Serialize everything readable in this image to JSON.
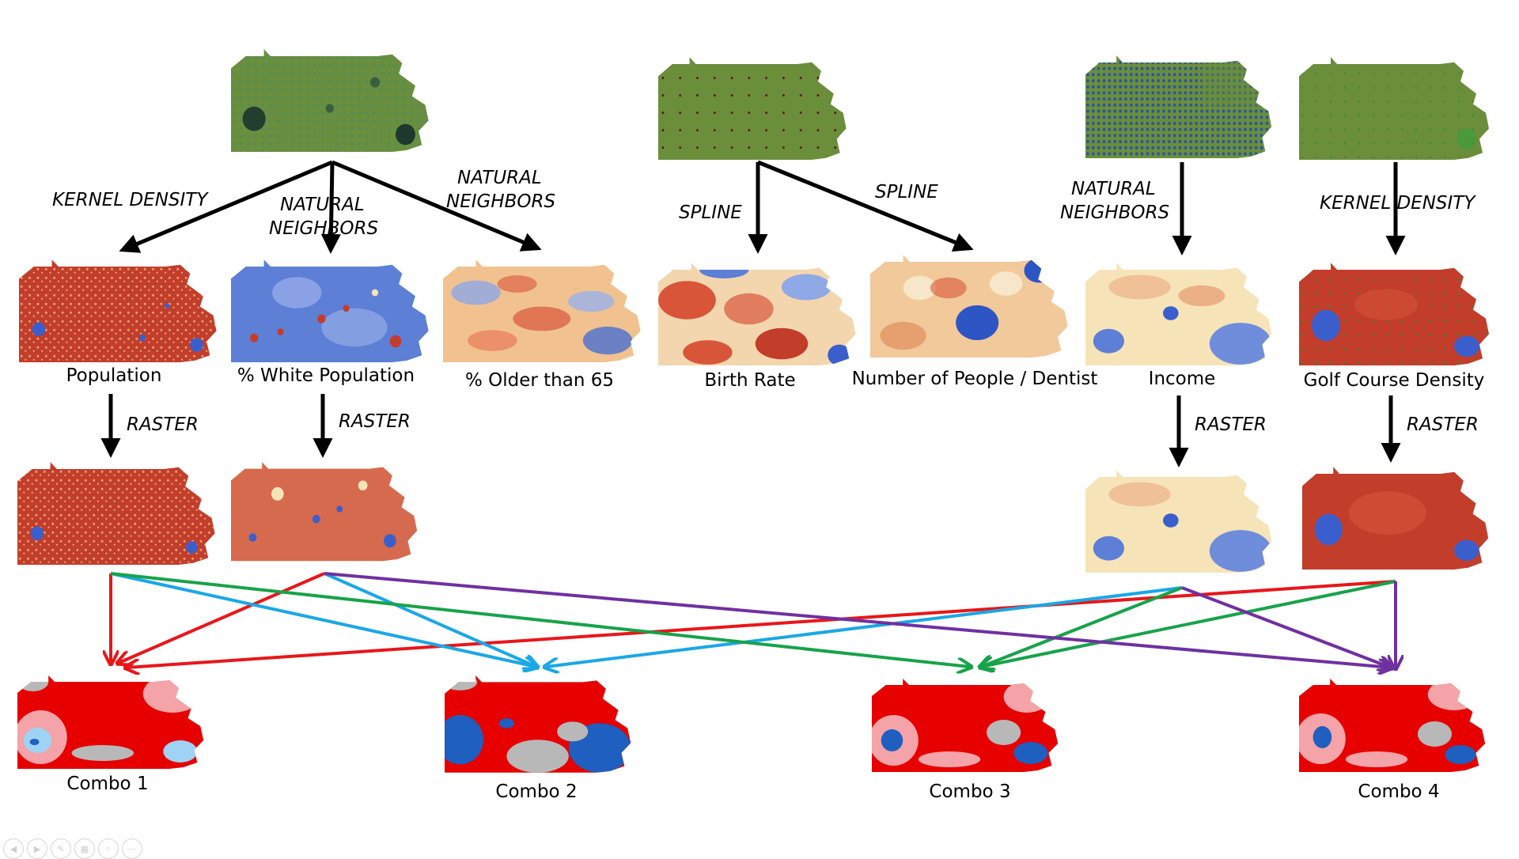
{
  "labels": {
    "population": "Population",
    "white_population": "% White Population",
    "older_than_65": "% Older than 65",
    "birth_rate": "Birth Rate",
    "people_per_dentist": "Number of People / Dentist",
    "income": "Income",
    "golf_course_density": "Golf Course Density",
    "combo1": "Combo 1",
    "combo2": "Combo 2",
    "combo3": "Combo 3",
    "combo4": "Combo 4"
  },
  "methods": {
    "kernel_density": "KERNEL DENSITY",
    "natural_neighbors": [
      "NATURAL",
      "NEIGHBORS"
    ],
    "spline": "SPLINE",
    "raster": "RASTER"
  },
  "colors": {
    "map_green": "#6b8e3a",
    "heat_red": "#c33d2b",
    "heat_cream": "#f6e4b8",
    "heat_blue": "#3a5fcd",
    "combo_red": "#e60000",
    "combo_pink": "#f4a3a8",
    "combo_gray": "#b8b8b8",
    "combo_blue": "#1f5fbf",
    "combo_lightblue": "#9fd3f5",
    "arrow_black": "#000000",
    "link_red": "#e8161a",
    "link_cyan": "#1aa7e6",
    "link_green": "#17a34a",
    "link_purple": "#7030a0"
  },
  "toolbar": {
    "icons": [
      "prev-icon",
      "next-icon",
      "pen-icon",
      "slides-icon",
      "zoom-icon",
      "more-icon"
    ]
  }
}
